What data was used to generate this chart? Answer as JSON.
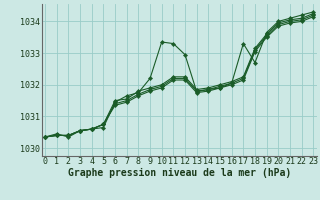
{
  "background_color": "#cce8e4",
  "grid_color": "#99ccc8",
  "line_color": "#1a5c28",
  "ylabel_vals": [
    1030,
    1031,
    1032,
    1033,
    1034
  ],
  "xlabel_vals": [
    0,
    1,
    2,
    3,
    4,
    5,
    6,
    7,
    8,
    9,
    10,
    11,
    12,
    13,
    14,
    15,
    16,
    17,
    18,
    19,
    20,
    21,
    22,
    23
  ],
  "xlabel_label": "Graphe pression niveau de la mer (hPa)",
  "series": [
    [
      1030.35,
      1030.45,
      1030.35,
      1030.55,
      1030.6,
      1030.65,
      1031.45,
      1031.65,
      1031.75,
      1032.2,
      1033.35,
      1033.3,
      1032.95,
      1031.78,
      1031.85,
      1031.9,
      1032.05,
      1033.3,
      1032.7,
      1033.65,
      1034.0,
      1034.1,
      1034.2,
      1034.3
    ],
    [
      1030.35,
      1030.4,
      1030.4,
      1030.55,
      1030.6,
      1030.75,
      1031.5,
      1031.55,
      1031.8,
      1031.9,
      1032.0,
      1032.25,
      1032.25,
      1031.85,
      1031.9,
      1032.0,
      1032.1,
      1032.25,
      1033.15,
      1033.6,
      1033.95,
      1034.05,
      1034.1,
      1034.25
    ],
    [
      1030.35,
      1030.4,
      1030.4,
      1030.55,
      1030.6,
      1030.75,
      1031.4,
      1031.5,
      1031.7,
      1031.85,
      1031.95,
      1032.2,
      1032.2,
      1031.8,
      1031.85,
      1031.95,
      1032.05,
      1032.2,
      1033.1,
      1033.55,
      1033.9,
      1034.0,
      1034.05,
      1034.2
    ],
    [
      1030.35,
      1030.4,
      1030.4,
      1030.55,
      1030.6,
      1030.75,
      1031.35,
      1031.45,
      1031.65,
      1031.8,
      1031.9,
      1032.15,
      1032.15,
      1031.75,
      1031.8,
      1031.9,
      1032.0,
      1032.15,
      1033.05,
      1033.5,
      1033.85,
      1033.95,
      1034.0,
      1034.15
    ]
  ],
  "ylim": [
    1029.75,
    1034.55
  ],
  "xlim": [
    -0.3,
    23.3
  ],
  "tick_fontsize": 6.0,
  "xlabel_fontsize": 7.0
}
